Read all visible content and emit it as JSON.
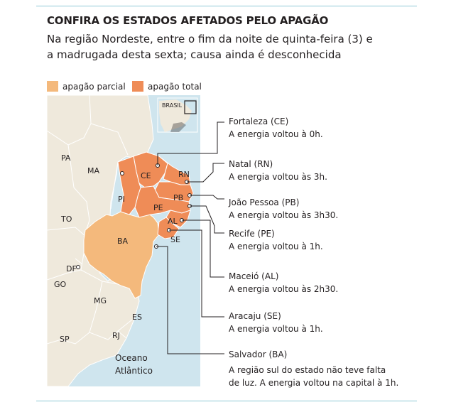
{
  "header": {
    "title": "CONFIRA OS ESTADOS AFETADOS PELO APAGÃO",
    "subtitle": "Na região Nordeste, entre o fim da noite de quinta-feira (3) e a madrugada desta sexta; causa ainda é desconhecida"
  },
  "legend": {
    "partial": {
      "label": "apagão parcial",
      "color": "#f4b97c"
    },
    "total": {
      "label": "apagão total",
      "color": "#ef8c57"
    }
  },
  "colors": {
    "sea": "#cfe5ee",
    "land": "#efe9dc",
    "border": "#ffffff",
    "rule": "#8fc9d6"
  },
  "inset": {
    "label": "BRASIL"
  },
  "states": {
    "PA": "PA",
    "MA": "MA",
    "PI": "PI",
    "TO": "TO",
    "BA": "BA",
    "DF": "DF",
    "GO": "GO",
    "MG": "MG",
    "ES": "ES",
    "RJ": "RJ",
    "SP": "SP",
    "CE": "CE",
    "RN": "RN",
    "PB": "PB",
    "PE": "PE",
    "AL": "AL",
    "SE": "SE"
  },
  "ocean": {
    "line1": "Oceano",
    "line2": "Atlântico"
  },
  "annotations": [
    {
      "city": "Fortaleza (CE)",
      "text": [
        "A energia voltou à 0h."
      ]
    },
    {
      "city": "Natal (RN)",
      "text": [
        "A energia voltou às 3h."
      ]
    },
    {
      "city": "João Pessoa (PB)",
      "text": [
        "A energia voltou às 3h30."
      ]
    },
    {
      "city": "Recife (PE)",
      "text": [
        "A energia voltou à 1h."
      ]
    },
    {
      "city": "Maceió (AL)",
      "text": [
        "A energia voltou às 2h30."
      ]
    },
    {
      "city": "Aracaju (SE)",
      "text": [
        "A energia voltou à 1h."
      ]
    },
    {
      "city": "Salvador (BA)",
      "text": [
        "A região sul do estado não teve falta",
        "de luz. A energia voltou na capital à 1h."
      ]
    }
  ]
}
